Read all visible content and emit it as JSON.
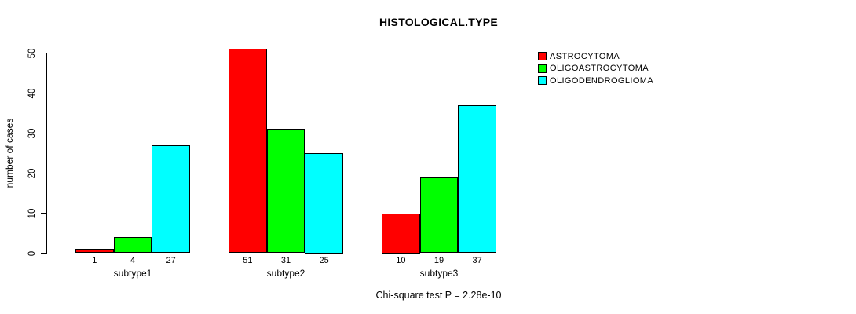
{
  "title": "HISTOLOGICAL.TYPE",
  "caption": "Chi-square test P = 2.28e-10",
  "chart_data": {
    "type": "bar",
    "title": "HISTOLOGICAL.TYPE",
    "xlabel": "",
    "ylabel": "number of cases",
    "categories": [
      "subtype1",
      "subtype2",
      "subtype3"
    ],
    "series": [
      {
        "name": "ASTROCYTOMA",
        "color": "#ff0000",
        "values": [
          1,
          51,
          10
        ]
      },
      {
        "name": "OLIGOASTROCYTOMA",
        "color": "#00ff00",
        "values": [
          4,
          31,
          19
        ]
      },
      {
        "name": "OLIGODENDROGLIOMA",
        "color": "#00ffff",
        "values": [
          27,
          25,
          37
        ]
      }
    ],
    "yticks": [
      0,
      10,
      20,
      30,
      40,
      50
    ],
    "ylim": [
      0,
      50
    ],
    "grid": false,
    "bar_value_labels_shown": true,
    "legend_position": "right",
    "annotation": "Chi-square test P = 2.28e-10",
    "axis_color": "#000000",
    "bar_border_color": "#000000",
    "background_color": "#ffffff"
  }
}
